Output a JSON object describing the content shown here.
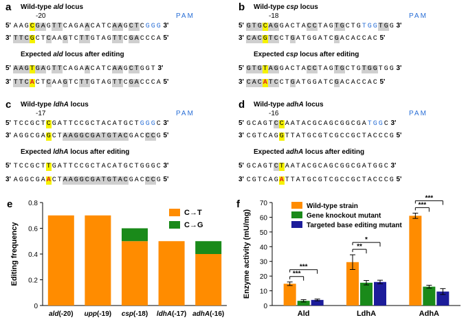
{
  "panels_seq": [
    {
      "label": "a",
      "title_pre": "Wild-type ",
      "title_gene": "ald",
      "title_post": " locus",
      "pos": "-20",
      "pam": "PAM",
      "edited_pre": "Expected ",
      "edited_gene": "ald",
      "edited_post": " locus after editing",
      "wt_top": [
        [
          "AAG",
          ""
        ],
        [
          "C",
          "y"
        ],
        [
          "GA",
          "g"
        ],
        [
          "G",
          ""
        ],
        [
          "TT",
          "g"
        ],
        [
          "C",
          ""
        ],
        [
          "AGA",
          ""
        ],
        [
          "A",
          "g"
        ],
        [
          "C",
          ""
        ],
        [
          "ATC",
          ""
        ],
        [
          "AA",
          "g"
        ],
        [
          "G",
          ""
        ],
        [
          "CT",
          "g"
        ],
        [
          "C",
          ""
        ],
        [
          "GGG",
          "b"
        ]
      ],
      "wt_bot": [
        [
          "TTC",
          "g"
        ],
        [
          "G",
          "y"
        ],
        [
          "CT",
          ""
        ],
        [
          "C",
          "g"
        ],
        [
          "AA",
          ""
        ],
        [
          "G",
          "g"
        ],
        [
          "TC",
          ""
        ],
        [
          "TT",
          "g"
        ],
        [
          "G",
          ""
        ],
        [
          "TAG",
          ""
        ],
        [
          "TT",
          "g"
        ],
        [
          "C",
          ""
        ],
        [
          "GA",
          "g"
        ],
        [
          "CCCA",
          ""
        ]
      ],
      "ed_top": [
        [
          "AAG",
          "g"
        ],
        [
          "T",
          "y"
        ],
        [
          "GA",
          "g"
        ],
        [
          "G",
          ""
        ],
        [
          "TT",
          "g"
        ],
        [
          "C",
          ""
        ],
        [
          "AGA",
          ""
        ],
        [
          "A",
          "g"
        ],
        [
          "C",
          ""
        ],
        [
          "ATC",
          ""
        ],
        [
          "AA",
          "g"
        ],
        [
          "G",
          ""
        ],
        [
          "CT",
          "g"
        ],
        [
          "GGT",
          ""
        ]
      ],
      "ed_bot": [
        [
          "TTC",
          "g"
        ],
        [
          "A",
          "r"
        ],
        [
          "CT",
          ""
        ],
        [
          "C",
          "g"
        ],
        [
          "AA",
          ""
        ],
        [
          "G",
          "g"
        ],
        [
          "TC",
          ""
        ],
        [
          "TT",
          "g"
        ],
        [
          "G",
          ""
        ],
        [
          "TAG",
          ""
        ],
        [
          "TT",
          "g"
        ],
        [
          "C",
          ""
        ],
        [
          "GA",
          "g"
        ],
        [
          "CCCA",
          ""
        ]
      ]
    },
    {
      "label": "b",
      "title_pre": "Wild-type ",
      "title_gene": "csp",
      "title_post": " locus",
      "pos": "-18",
      "pam": "PAM",
      "edited_pre": "Expected ",
      "edited_gene": "csp",
      "edited_post": " locus after editing",
      "wt_top": [
        [
          "GTG",
          "g"
        ],
        [
          "C",
          "y"
        ],
        [
          "AG",
          "g"
        ],
        [
          "GAC",
          ""
        ],
        [
          "TA",
          ""
        ],
        [
          "CC",
          "g"
        ],
        [
          "TA",
          ""
        ],
        [
          "G",
          ""
        ],
        [
          "TG",
          "g"
        ],
        [
          "CTG",
          ""
        ],
        [
          "TGG",
          "b"
        ],
        [
          "TG",
          "g"
        ],
        [
          "G",
          ""
        ]
      ],
      "wt_bot": [
        [
          "CA",
          "g"
        ],
        [
          "C",
          "g"
        ],
        [
          "G",
          "y"
        ],
        [
          "TC",
          "g"
        ],
        [
          "CT",
          ""
        ],
        [
          "G",
          "g"
        ],
        [
          "AT",
          ""
        ],
        [
          "GGA",
          ""
        ],
        [
          "TC",
          ""
        ],
        [
          "G",
          "g"
        ],
        [
          "AC",
          ""
        ],
        [
          "ACC",
          ""
        ],
        [
          "AC",
          ""
        ]
      ],
      "ed_top": [
        [
          "GTG",
          "g"
        ],
        [
          "T",
          "y"
        ],
        [
          "AG",
          "g"
        ],
        [
          "GAC",
          ""
        ],
        [
          "TA",
          ""
        ],
        [
          "CC",
          "g"
        ],
        [
          "TA",
          ""
        ],
        [
          "G",
          ""
        ],
        [
          "TG",
          "g"
        ],
        [
          "CTG",
          ""
        ],
        [
          "TGG",
          "g"
        ],
        [
          "TG",
          ""
        ],
        [
          "G",
          ""
        ]
      ],
      "ed_bot": [
        [
          "CA",
          "g"
        ],
        [
          "C",
          "g"
        ],
        [
          "A",
          "r"
        ],
        [
          "TC",
          "g"
        ],
        [
          "CT",
          ""
        ],
        [
          "G",
          "g"
        ],
        [
          "AT",
          ""
        ],
        [
          "GGA",
          ""
        ],
        [
          "TC",
          ""
        ],
        [
          "G",
          "g"
        ],
        [
          "AC",
          ""
        ],
        [
          "ACC",
          ""
        ],
        [
          "AC",
          ""
        ]
      ]
    },
    {
      "label": "c",
      "title_pre": "Wild-type ",
      "title_gene": "ldhA",
      "title_post": " locus",
      "pos": "-17",
      "pam": "PAM",
      "edited_pre": "Expected ",
      "edited_gene": "ldhA",
      "edited_post": " locus after editing",
      "wt_top": [
        [
          "TCC",
          ""
        ],
        [
          "GCT",
          ""
        ],
        [
          "C",
          "y"
        ],
        [
          "GA",
          ""
        ],
        [
          "TTCCGCTACA",
          ""
        ],
        [
          "TG",
          ""
        ],
        [
          "CT",
          ""
        ],
        [
          "GGG",
          "b"
        ],
        [
          "C",
          ""
        ]
      ],
      "wt_bot": [
        [
          "AGG",
          ""
        ],
        [
          "CGA",
          ""
        ],
        [
          "G",
          "y"
        ],
        [
          "CT",
          ""
        ],
        [
          "AAGGCGATGTAC",
          "g"
        ],
        [
          "GAC",
          ""
        ],
        [
          "CC",
          "g"
        ],
        [
          "G",
          ""
        ]
      ],
      "ed_top": [
        [
          "TCC",
          ""
        ],
        [
          "GCT",
          ""
        ],
        [
          "T",
          "y"
        ],
        [
          "GA",
          ""
        ],
        [
          "TTCCGCTACA",
          ""
        ],
        [
          "TG",
          ""
        ],
        [
          "CT",
          ""
        ],
        [
          "GGG",
          ""
        ],
        [
          "C",
          ""
        ]
      ],
      "ed_bot": [
        [
          "AGG",
          ""
        ],
        [
          "CGA",
          ""
        ],
        [
          "A",
          "r"
        ],
        [
          "CT",
          ""
        ],
        [
          "AAGGCGATGTAC",
          "g"
        ],
        [
          "GAC",
          ""
        ],
        [
          "CC",
          "g"
        ],
        [
          "G",
          ""
        ]
      ]
    },
    {
      "label": "d",
      "title_pre": "Wild-type ",
      "title_gene": "adhA",
      "title_post": " locus",
      "pos": "-16",
      "pam": "PAM",
      "edited_pre": "Expected ",
      "edited_gene": "adhA",
      "edited_post": " locus after editing",
      "wt_top": [
        [
          "GC",
          ""
        ],
        [
          "AGT",
          ""
        ],
        [
          "C",
          "g"
        ],
        [
          "C",
          "y"
        ],
        [
          "AATACGCAGCGGCGA",
          ""
        ],
        [
          "TGG",
          "b"
        ],
        [
          "C",
          ""
        ]
      ],
      "wt_bot": [
        [
          "CGT",
          ""
        ],
        [
          "CAG",
          ""
        ],
        [
          "G",
          "y"
        ],
        [
          "TTATGCGTCGCCGCTACCCG",
          ""
        ]
      ],
      "ed_top": [
        [
          "GC",
          ""
        ],
        [
          "AGT",
          ""
        ],
        [
          "C",
          "g"
        ],
        [
          "T",
          "y"
        ],
        [
          "AATACGCAGCGGCGA",
          ""
        ],
        [
          "TGG",
          ""
        ],
        [
          "C",
          ""
        ]
      ],
      "ed_bot": [
        [
          "CGT",
          ""
        ],
        [
          "CAG",
          ""
        ],
        [
          "A",
          "r"
        ],
        [
          "TTATGCGTCGCCGCTACCCG",
          ""
        ]
      ]
    }
  ],
  "strand5": "5'",
  "strand3": "3'",
  "chart_e": {
    "label": "e",
    "type": "bar",
    "ylabel": "Editing frequency",
    "ylim": [
      0,
      0.8
    ],
    "yticks": [
      "0",
      "0.2",
      "0.4",
      "0.6",
      "0.8"
    ],
    "categories": [
      "ald(-20)",
      "upp(-19)",
      "csp(-18)",
      "ldhA(-17)",
      "adhA(-16)"
    ],
    "series": [
      {
        "name": "C→T",
        "color": "#ff8c00",
        "values": [
          0.7,
          0.7,
          0.5,
          0.5,
          0.4
        ]
      },
      {
        "name": "C→G",
        "color": "#1a8a1a",
        "values": [
          0,
          0,
          0.1,
          0,
          0.1
        ]
      }
    ]
  },
  "chart_f": {
    "label": "f",
    "type": "bar",
    "ylabel": "Enzyme activity (mU/mg)",
    "ylim": [
      0,
      70
    ],
    "yticks": [
      "0",
      "10",
      "20",
      "30",
      "40",
      "50",
      "60",
      "70"
    ],
    "categories": [
      "Ald",
      "LdhA",
      "AdhA"
    ],
    "series": [
      {
        "name": "Wild-type strain",
        "color": "#ff8c00",
        "values": [
          14.8,
          29.5,
          61.0
        ],
        "err": [
          1.2,
          5.0,
          1.8
        ]
      },
      {
        "name": "Gene knockout mutant",
        "color": "#1a8a1a",
        "values": [
          3.2,
          15.5,
          12.8
        ],
        "err": [
          0.8,
          1.5,
          1.0
        ]
      },
      {
        "name": "Targeted base editing mutant",
        "color": "#1c1c9a",
        "values": [
          3.8,
          16.0,
          9.5
        ],
        "err": [
          0.6,
          1.2,
          2.0
        ]
      }
    ],
    "significance": [
      "***",
      "***",
      "**",
      "*",
      "***",
      "***"
    ]
  }
}
